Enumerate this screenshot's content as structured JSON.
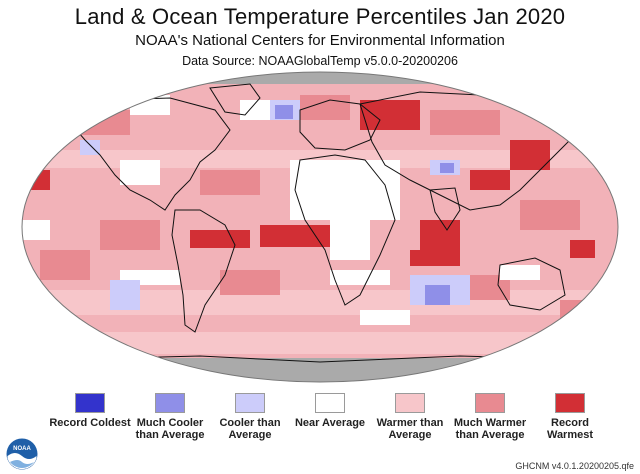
{
  "header": {
    "title": "Land & Ocean Temperature Percentiles Jan 2020",
    "subtitle": "NOAA's National Centers for Environmental Information",
    "source": "Data Source: NOAAGlobalTemp v5.0.0-20200206"
  },
  "legend": [
    {
      "label": "Record Coldest",
      "color": "#3333cc"
    },
    {
      "label": "Much Cooler than Average",
      "color": "#8f8fe8"
    },
    {
      "label": "Cooler than Average",
      "color": "#ccccfa"
    },
    {
      "label": "Near Average",
      "color": "#ffffff"
    },
    {
      "label": "Warmer than Average",
      "color": "#f7c6ca"
    },
    {
      "label": "Much Warmer than Average",
      "color": "#e88a91"
    },
    {
      "label": "Record Warmest",
      "color": "#d22f35"
    }
  ],
  "colors": {
    "missing": "#aaaaaa",
    "ocean_base": "#f2b2b8"
  },
  "logo": {
    "text": "NOAA",
    "icon": "noaa-logo-icon"
  },
  "footer": {
    "note": "GHCNM v4.0.1.20200205.qfe"
  }
}
